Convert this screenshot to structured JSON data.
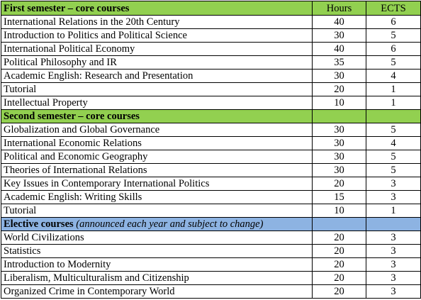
{
  "columns": {
    "hours": "Hours",
    "ects": "ECTS"
  },
  "colors": {
    "core_section_bg": "#92d050",
    "elective_section_bg": "#8db3e2",
    "border": "#000000"
  },
  "sections": [
    {
      "title": "First semester – core courses",
      "note": "",
      "style": "green",
      "rows": [
        {
          "name": "International Relations in the 20th Century",
          "hours": "40",
          "ects": "6"
        },
        {
          "name": "Introduction to Politics and Political Science",
          "hours": "30",
          "ects": "5"
        },
        {
          "name": "International Political Economy",
          "hours": "40",
          "ects": "6"
        },
        {
          "name": "Political Philosophy and IR",
          "hours": "35",
          "ects": "5"
        },
        {
          "name": "Academic English: Research and Presentation",
          "hours": "30",
          "ects": "4"
        },
        {
          "name": "Tutorial",
          "hours": "20",
          "ects": "1"
        },
        {
          "name": "Intellectual Property",
          "hours": "10",
          "ects": "1"
        }
      ]
    },
    {
      "title": "Second semester – core courses",
      "note": "",
      "style": "green",
      "rows": [
        {
          "name": "Globalization and Global Governance",
          "hours": "30",
          "ects": "5"
        },
        {
          "name": "International Economic Relations",
          "hours": "30",
          "ects": "4"
        },
        {
          "name": "Political and Economic Geography",
          "hours": "30",
          "ects": "5"
        },
        {
          "name": "Theories of International Relations",
          "hours": "30",
          "ects": "5"
        },
        {
          "name": "Key Issues in Contemporary International Politics",
          "hours": "20",
          "ects": "3"
        },
        {
          "name": "Academic English: Writing Skills",
          "hours": "15",
          "ects": "3"
        },
        {
          "name": "Tutorial",
          "hours": "10",
          "ects": "1"
        }
      ]
    },
    {
      "title": "Elective courses",
      "note": "(announced each year and subject to change)",
      "style": "blue",
      "rows": [
        {
          "name": "World Civilizations",
          "hours": "20",
          "ects": "3"
        },
        {
          "name": "Statistics",
          "hours": "20",
          "ects": "3"
        },
        {
          "name": "Introduction to Modernity",
          "hours": "20",
          "ects": "3"
        },
        {
          "name": "Liberalism, Multiculturalism and Citizenship",
          "hours": "20",
          "ects": "3"
        },
        {
          "name": "Organized Crime in Contemporary World",
          "hours": "20",
          "ects": "3"
        }
      ]
    }
  ]
}
